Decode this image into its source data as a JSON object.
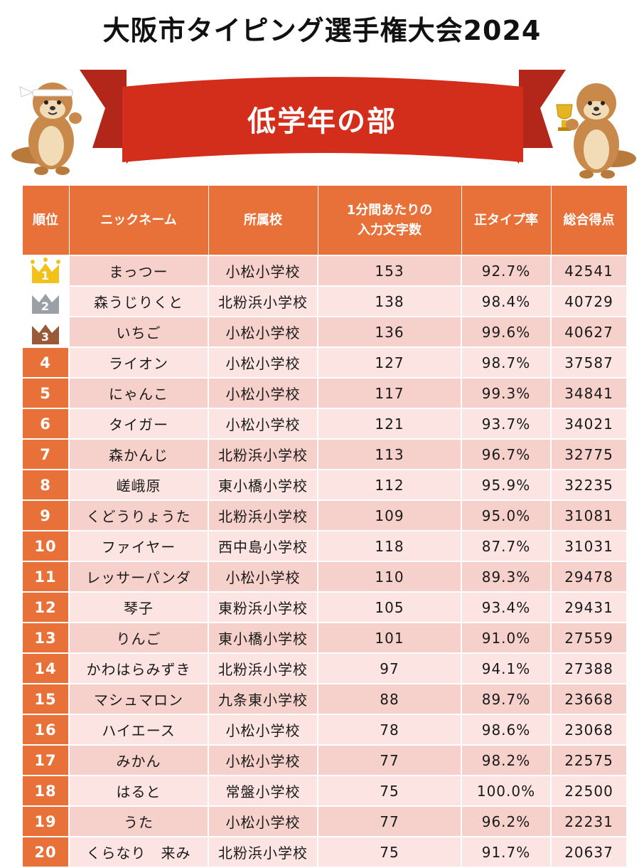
{
  "title": "大阪市タイピング選手権大会2024",
  "banner": "低学年の部",
  "colors": {
    "header": "#e8713a",
    "ribbon": "#d32d1c",
    "ribbon_dark": "#a51f14",
    "row_odd": "#f6d0cb",
    "row_even": "#fbe4e1"
  },
  "columns": [
    "順位",
    "ニックネーム",
    "所属校",
    "1分間あたりの\n入力文字数",
    "正タイプ率",
    "総合得点"
  ],
  "rows": [
    {
      "rank": "1",
      "name": "まっつー",
      "school": "小松小学校",
      "cpm": "153",
      "accuracy": "92.7%",
      "score": "42541"
    },
    {
      "rank": "2",
      "name": "森うじりくと",
      "school": "北粉浜小学校",
      "cpm": "138",
      "accuracy": "98.4%",
      "score": "40729"
    },
    {
      "rank": "3",
      "name": "いちご",
      "school": "小松小学校",
      "cpm": "136",
      "accuracy": "99.6%",
      "score": "40627"
    },
    {
      "rank": "4",
      "name": "ライオン",
      "school": "小松小学校",
      "cpm": "127",
      "accuracy": "98.7%",
      "score": "37587"
    },
    {
      "rank": "5",
      "name": "にゃんこ",
      "school": "小松小学校",
      "cpm": "117",
      "accuracy": "99.3%",
      "score": "34841"
    },
    {
      "rank": "6",
      "name": "タイガー",
      "school": "小松小学校",
      "cpm": "121",
      "accuracy": "93.7%",
      "score": "34021"
    },
    {
      "rank": "7",
      "name": "森かんじ",
      "school": "北粉浜小学校",
      "cpm": "113",
      "accuracy": "96.7%",
      "score": "32775"
    },
    {
      "rank": "8",
      "name": "嵯峨原",
      "school": "東小橋小学校",
      "cpm": "112",
      "accuracy": "95.9%",
      "score": "32235"
    },
    {
      "rank": "9",
      "name": "くどうりょうた",
      "school": "北粉浜小学校",
      "cpm": "109",
      "accuracy": "95.0%",
      "score": "31081"
    },
    {
      "rank": "10",
      "name": "ファイヤー",
      "school": "西中島小学校",
      "cpm": "118",
      "accuracy": "87.7%",
      "score": "31031"
    },
    {
      "rank": "11",
      "name": "レッサーパンダ",
      "school": "小松小学校",
      "cpm": "110",
      "accuracy": "89.3%",
      "score": "29478"
    },
    {
      "rank": "12",
      "name": "琴子",
      "school": "東粉浜小学校",
      "cpm": "105",
      "accuracy": "93.4%",
      "score": "29431"
    },
    {
      "rank": "13",
      "name": "りんご",
      "school": "東小橋小学校",
      "cpm": "101",
      "accuracy": "91.0%",
      "score": "27559"
    },
    {
      "rank": "14",
      "name": "かわはらみずき",
      "school": "北粉浜小学校",
      "cpm": "97",
      "accuracy": "94.1%",
      "score": "27388"
    },
    {
      "rank": "15",
      "name": "マシュマロン",
      "school": "九条東小学校",
      "cpm": "88",
      "accuracy": "89.7%",
      "score": "23668"
    },
    {
      "rank": "16",
      "name": "ハイエース",
      "school": "小松小学校",
      "cpm": "78",
      "accuracy": "98.6%",
      "score": "23068"
    },
    {
      "rank": "17",
      "name": "みかん",
      "school": "小松小学校",
      "cpm": "77",
      "accuracy": "98.2%",
      "score": "22575"
    },
    {
      "rank": "18",
      "name": "はると",
      "school": "常盤小学校",
      "cpm": "75",
      "accuracy": "100.0%",
      "score": "22500"
    },
    {
      "rank": "19",
      "name": "うた",
      "school": "小松小学校",
      "cpm": "77",
      "accuracy": "96.2%",
      "score": "22231"
    },
    {
      "rank": "20",
      "name": "くらなり　来み",
      "school": "北粉浜小学校",
      "cpm": "75",
      "accuracy": "91.7%",
      "score": "20637"
    }
  ],
  "medals": [
    {
      "rank": "1",
      "icon": "gold-crown-icon",
      "color": "#f2c21b"
    },
    {
      "rank": "2",
      "icon": "silver-crown-icon",
      "color": "#9aa0a6"
    },
    {
      "rank": "3",
      "icon": "bronze-crown-icon",
      "color": "#9a5a3a"
    }
  ],
  "mascots": [
    "otter-headband-icon",
    "otter-trophy-icon"
  ]
}
